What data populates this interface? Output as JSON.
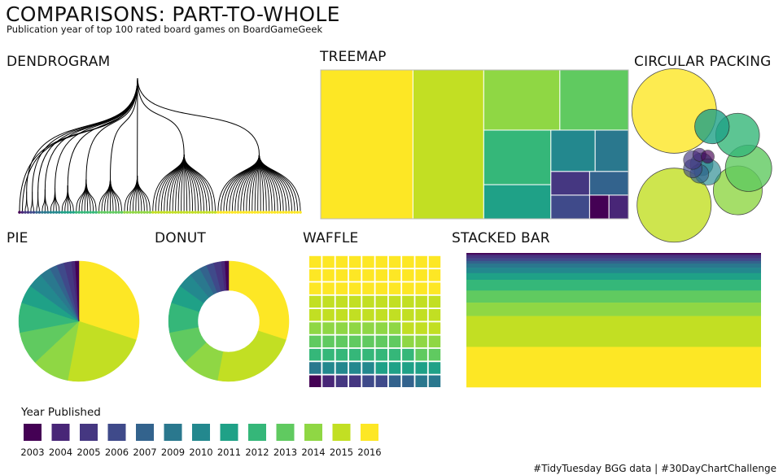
{
  "title": "COMPARISONS: PART-TO-WHOLE",
  "subtitle": "Publication year of top 100 rated board games on BoardGameGeek",
  "caption": "#TidyTuesday BGG data | #30DayChartChallenge",
  "panels": {
    "dendrogram": "DENDROGRAM",
    "treemap": "TREEMAP",
    "circular_packing": "CIRCULAR PACKING",
    "pie": "PIE",
    "donut": "DONUT",
    "waffle": "WAFFLE",
    "stacked_bar": "STACKED BAR"
  },
  "legend": {
    "title": "Year Published"
  },
  "chart_data": {
    "type": "pie",
    "title": "COMPARISONS: PART-TO-WHOLE",
    "subtitle": "Publication year of top 100 rated board games on BoardGameGeek",
    "legend_title": "Year Published",
    "legend_position": "bottom-left",
    "categories": [
      "2003",
      "2004",
      "2005",
      "2006",
      "2007",
      "2009",
      "2010",
      "2011",
      "2012",
      "2013",
      "2014",
      "2015",
      "2016"
    ],
    "values": [
      1,
      1,
      2,
      2,
      2,
      3,
      4,
      5,
      8,
      9,
      10,
      23,
      30
    ],
    "colors": [
      "#440154",
      "#482677",
      "#453781",
      "#3f4a8a",
      "#33638d",
      "#2a788e",
      "#23888e",
      "#1fa187",
      "#35b779",
      "#60ca60",
      "#8fd744",
      "#c2df23",
      "#fde725"
    ]
  }
}
